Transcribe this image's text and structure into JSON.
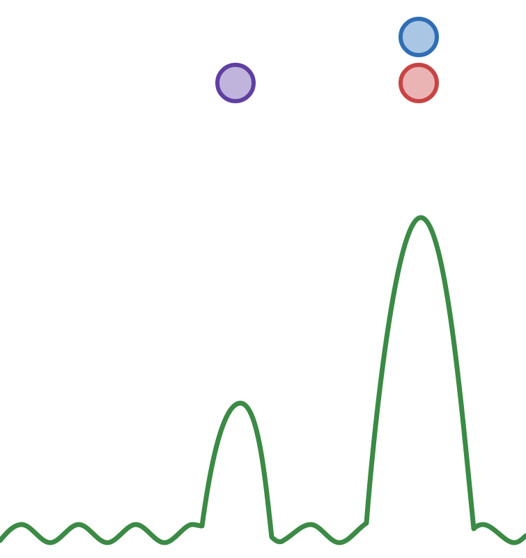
{
  "colors": {
    "background": "#ffffff",
    "wave_stroke": "#3b8a45",
    "marker_purple_fill": "#c0b4dc",
    "marker_purple_stroke": "#5f3fa0",
    "marker_blue_fill": "#a9c6e4",
    "marker_blue_stroke": "#2f6eb4",
    "marker_red_fill": "#ebb4b4",
    "marker_red_stroke": "#c84444"
  },
  "wave": {
    "description_icon": "wave-line-icon",
    "peaks": 2
  },
  "markers": [
    {
      "name": "marker-purple-circle",
      "color_key": "purple"
    },
    {
      "name": "marker-blue-circle",
      "color_key": "blue"
    },
    {
      "name": "marker-red-circle",
      "color_key": "red"
    }
  ]
}
